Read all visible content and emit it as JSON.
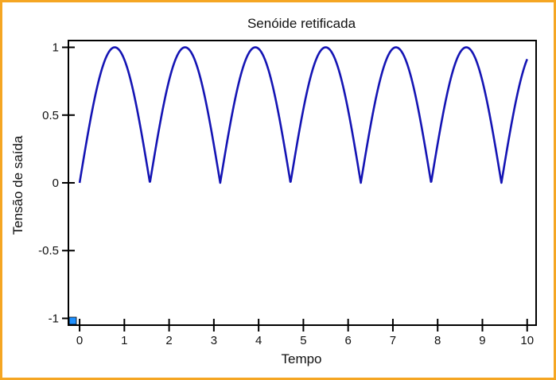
{
  "chart_data": {
    "type": "line",
    "title": "Senóide retificada",
    "xlabel": "Tempo",
    "ylabel": "Tensão de saída",
    "xlim": [
      -0.25,
      10.2
    ],
    "ylim": [
      -1.05,
      1.05
    ],
    "xticks": [
      0,
      1,
      2,
      3,
      4,
      5,
      6,
      7,
      8,
      9,
      10
    ],
    "xtick_labels": [
      "0",
      "1",
      "2",
      "3",
      "4",
      "5",
      "6",
      "7",
      "8",
      "9",
      "10"
    ],
    "yticks": [
      1,
      0.5,
      0,
      -0.5,
      -1
    ],
    "ytick_labels": [
      "1",
      "0.5",
      "0",
      "-0.5",
      "-1"
    ],
    "grid": false,
    "series": [
      {
        "function": "abs(sin(2*t))",
        "x_start": 0,
        "x_end": 10,
        "color": "#1414b4"
      }
    ],
    "marker_color": "#1e90ff"
  }
}
